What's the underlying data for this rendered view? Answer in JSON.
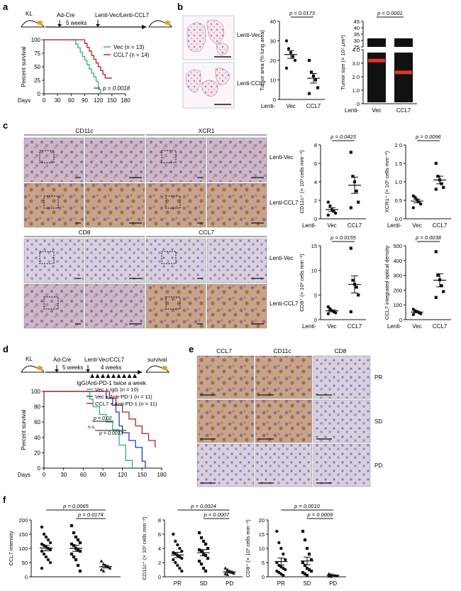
{
  "panels": {
    "a": {
      "letter": "a",
      "schema": {
        "kl": "KL",
        "ad_cre": "Ad-Cre",
        "weeks": "5 weeks",
        "lenti": "Lenti-Vec/Lenti-CCL7"
      },
      "legend": [
        {
          "text": "Vec (n = 13)",
          "color": "#2bb37a"
        },
        {
          "text": "CCL7 (n = 14)",
          "color": "#b22222"
        }
      ],
      "ylabel": "Percent survival",
      "yticks": [
        "0",
        "25",
        "50",
        "75",
        "100"
      ],
      "xlabel": "Days",
      "xticks": [
        "0",
        "30",
        "60",
        "90",
        "120",
        "150",
        "180"
      ],
      "pvalue": "p = 0.0018"
    },
    "b": {
      "letter": "b",
      "rows": [
        "Lenti-Vec",
        "Lenti-CCL7"
      ],
      "chart1": {
        "ylabel": "Tumor area (% lung area)",
        "yticks": [
          "0",
          "10",
          "20",
          "30",
          "40"
        ],
        "pvalue": "p = 0.0173",
        "xprefix": "Lenti-",
        "cats": [
          "Vec",
          "CCL7"
        ]
      },
      "chart2": {
        "ylabel": "Tumor size (× 10⁵ μm²)",
        "yticks_top": [
          "25",
          "30",
          "35",
          "40",
          "45"
        ],
        "yticks_bottom": [
          "0",
          "1.0",
          "2.0",
          "3.0",
          "4.0"
        ],
        "pvalue": "p < 0.0001",
        "xprefix": "Lenti-",
        "cats": [
          "Vec",
          "CCL7"
        ]
      }
    },
    "c": {
      "letter": "c",
      "headers": [
        "CD11c",
        "XCR1",
        "CD8",
        "CCL7"
      ],
      "rows": [
        "Lenti-Vec",
        "Lenti-CCL7"
      ],
      "charts": [
        {
          "ylabel": "CD11c⁺ (× 10³ cells mm⁻²)",
          "yticks": [
            "0",
            "2",
            "4",
            "6",
            "8"
          ],
          "pvalue": "p = 0.0423"
        },
        {
          "ylabel": "XCR1⁺ (× 10² cells mm⁻²)",
          "yticks": [
            "0.0",
            "0.5",
            "1.0",
            "1.5",
            "2.0"
          ],
          "pvalue": "p = 0.0096"
        },
        {
          "ylabel": "CD8⁺ (× 10³ cells mm⁻²)",
          "yticks": [
            "0",
            "5",
            "10",
            "15"
          ],
          "pvalue": "p = 0.0155"
        },
        {
          "ylabel": "CCL7 integrated optical density",
          "yticks": [
            "0",
            "100",
            "200",
            "300",
            "400",
            "500"
          ],
          "pvalue": "p = 0.0038"
        }
      ],
      "xprefix": "Lenti-",
      "cats": [
        "Vec",
        "CCL7"
      ]
    },
    "d": {
      "letter": "d",
      "schema": {
        "kl": "KL",
        "ad_cre": "Ad-Cre",
        "weeks5": "5 weeks",
        "lenti": "Lenti-Vec/CCL7",
        "weeks4": "4 weeks",
        "survival": "survival",
        "treat": "IgG/Anti-PD-1 twice a week"
      },
      "legend": [
        {
          "text": "Vec + IgG (n = 10)",
          "color": "#2bb37a"
        },
        {
          "text": "Vec + Anti-PD-1 (n = 11)",
          "color": "#1f3fbf"
        },
        {
          "text": "CCL7 + Anti-PD-1 (n = 11)",
          "color": "#b22222"
        }
      ],
      "ylabel": "Percent survival",
      "yticks": [
        "0",
        "20",
        "40",
        "60",
        "80",
        "100"
      ],
      "xlabel": "Days",
      "xticks": [
        "0",
        "30",
        "60",
        "90",
        "120",
        "150",
        "180"
      ],
      "p1": "p = 0.02",
      "ns": "n.s.",
      "p2": "p = 0.0033"
    },
    "e": {
      "letter": "e",
      "headers": [
        "CCL7",
        "CD11c",
        "CD8"
      ],
      "rows": [
        "PR",
        "SD",
        "PD"
      ]
    },
    "f": {
      "letter": "f",
      "charts": [
        {
          "ylabel": "CCL7 intensity",
          "yticks": [
            "0",
            "50",
            "100",
            "150",
            "200"
          ],
          "p1": "p = 0.0065",
          "p2": "p = 0.0174"
        },
        {
          "ylabel": "CD11c⁺ (× 10³ cells mm⁻²)",
          "yticks": [
            "0",
            "2",
            "4",
            "6",
            "8"
          ],
          "p1": "p = 0.0024",
          "p2": "p = 0.0007"
        },
        {
          "ylabel": "CD8⁺ (× 10³ cells mm⁻²)",
          "yticks": [
            "0",
            "5",
            "10",
            "15",
            "20"
          ],
          "p1": "p = 0.0010",
          "p2": "p = 0.0009"
        }
      ],
      "cats": [
        "PR",
        "SD",
        "PD"
      ]
    }
  },
  "chart_data": [
    {
      "type": "line",
      "panel": "a",
      "xlabel": "Days",
      "ylabel": "Percent survival",
      "xlim": [
        0,
        180
      ],
      "ylim": [
        0,
        100
      ],
      "series": [
        {
          "name": "Vec (n = 13)",
          "x": [
            0,
            60,
            70,
            75,
            80,
            85,
            90,
            95,
            100,
            105,
            110,
            115,
            120,
            125
          ],
          "y": [
            100,
            100,
            92,
            85,
            77,
            69,
            62,
            54,
            46,
            38,
            31,
            23,
            8,
            0
          ]
        },
        {
          "name": "CCL7 (n = 14)",
          "x": [
            0,
            80,
            90,
            95,
            100,
            105,
            110,
            115,
            120,
            125,
            130,
            135,
            140,
            150
          ],
          "y": [
            100,
            100,
            93,
            86,
            79,
            71,
            64,
            57,
            50,
            43,
            36,
            29,
            29,
            29
          ]
        }
      ]
    },
    {
      "type": "scatter",
      "panel": "b-1",
      "ylabel": "Tumor area (% lung area)",
      "ylim": [
        0,
        40
      ],
      "categories": [
        "Vec",
        "CCL7"
      ],
      "series": [
        {
          "name": "Vec",
          "values": [
            30,
            26,
            24,
            22,
            20,
            16
          ]
        },
        {
          "name": "CCL7",
          "values": [
            20,
            14,
            12,
            10,
            6,
            3
          ]
        }
      ]
    },
    {
      "type": "scatter",
      "panel": "c-CD11c",
      "ylim": [
        0,
        8
      ],
      "categories": [
        "Vec",
        "CCL7"
      ],
      "series": [
        {
          "name": "Vec",
          "values": [
            1.8,
            1.4,
            1.0,
            0.8,
            0.6,
            0.4
          ]
        },
        {
          "name": "CCL7",
          "values": [
            7.2,
            4.6,
            4.0,
            3.0,
            1.8,
            1.2
          ]
        }
      ]
    },
    {
      "type": "scatter",
      "panel": "c-XCR1",
      "ylim": [
        0,
        2
      ],
      "categories": [
        "Vec",
        "CCL7"
      ],
      "series": [
        {
          "name": "Vec",
          "values": [
            0.62,
            0.58,
            0.52,
            0.46,
            0.4,
            0.3
          ]
        },
        {
          "name": "CCL7",
          "values": [
            1.5,
            1.15,
            1.05,
            0.95,
            0.85,
            0.8
          ]
        }
      ]
    },
    {
      "type": "scatter",
      "panel": "c-CD8",
      "ylim": [
        0,
        15
      ],
      "categories": [
        "Vec",
        "CCL7"
      ],
      "series": [
        {
          "name": "Vec",
          "values": [
            2.6,
            2.2,
            1.8,
            1.6,
            1.4,
            1.2
          ]
        },
        {
          "name": "CCL7",
          "values": [
            14.5,
            8.0,
            7.2,
            6.6,
            5.0,
            1.6
          ]
        }
      ]
    },
    {
      "type": "scatter",
      "panel": "c-CCL7",
      "ylim": [
        0,
        500
      ],
      "categories": [
        "Vec",
        "CCL7"
      ],
      "series": [
        {
          "name": "Vec",
          "values": [
            70,
            60,
            55,
            48,
            40,
            35
          ]
        },
        {
          "name": "CCL7",
          "values": [
            460,
            300,
            270,
            230,
            190,
            150
          ]
        }
      ]
    },
    {
      "type": "line",
      "panel": "d",
      "xlabel": "Days",
      "ylabel": "Percent survival",
      "xlim": [
        0,
        180
      ],
      "ylim": [
        0,
        100
      ],
      "series": [
        {
          "name": "Vec + IgG (n = 10)",
          "x": [
            0,
            65,
            70,
            75,
            85,
            95,
            105,
            115,
            125,
            135
          ],
          "y": [
            100,
            100,
            90,
            80,
            70,
            60,
            50,
            30,
            10,
            0
          ]
        },
        {
          "name": "Vec + Anti-PD-1 (n = 11)",
          "x": [
            0,
            80,
            95,
            105,
            110,
            115,
            120,
            130,
            140,
            150,
            155
          ],
          "y": [
            100,
            100,
            91,
            82,
            73,
            55,
            46,
            36,
            27,
            9,
            0
          ]
        },
        {
          "name": "CCL7 + Anti-PD-1 (n = 11)",
          "x": [
            0,
            90,
            100,
            110,
            120,
            130,
            140,
            150,
            160,
            170
          ],
          "y": [
            100,
            100,
            91,
            82,
            73,
            64,
            55,
            45,
            36,
            27
          ]
        }
      ]
    },
    {
      "type": "scatter",
      "panel": "f-CCL7",
      "ylim": [
        0,
        200
      ],
      "categories": [
        "PR",
        "SD",
        "PD"
      ],
      "series": [
        {
          "name": "PR",
          "values": [
            175,
            150,
            140,
            130,
            120,
            115,
            110,
            105,
            100,
            95,
            90,
            80,
            70,
            60,
            50,
            30
          ]
        },
        {
          "name": "SD",
          "values": [
            180,
            155,
            140,
            130,
            120,
            115,
            110,
            100,
            95,
            90,
            80,
            70,
            60,
            40,
            20
          ]
        },
        {
          "name": "PD",
          "values": [
            55,
            45,
            40,
            35,
            30,
            25,
            20
          ]
        }
      ]
    },
    {
      "type": "scatter",
      "panel": "f-CD11c",
      "ylim": [
        0,
        8
      ],
      "categories": [
        "PR",
        "SD",
        "PD"
      ],
      "series": [
        {
          "name": "PR",
          "values": [
            6.0,
            5.0,
            4.5,
            4.0,
            3.6,
            3.4,
            3.2,
            3.0,
            2.8,
            2.6,
            2.4,
            2.0,
            1.6,
            1.2,
            0.8
          ]
        },
        {
          "name": "SD",
          "values": [
            6.2,
            5.5,
            5.0,
            4.6,
            4.0,
            3.8,
            3.6,
            3.2,
            3.0,
            2.6,
            2.2,
            1.8,
            1.2,
            0.8
          ]
        },
        {
          "name": "PD",
          "values": [
            1.2,
            1.0,
            0.8,
            0.6,
            0.5,
            0.4,
            0.3
          ]
        }
      ]
    },
    {
      "type": "scatter",
      "panel": "f-CD8",
      "ylim": [
        0,
        20
      ],
      "categories": [
        "PR",
        "SD",
        "PD"
      ],
      "series": [
        {
          "name": "PR",
          "values": [
            16,
            12,
            10,
            8,
            6,
            5,
            4,
            3.5,
            3,
            2.5,
            2,
            1.5,
            1,
            0.5
          ]
        },
        {
          "name": "SD",
          "values": [
            16,
            13,
            10,
            8,
            6,
            5,
            4,
            3,
            2.5,
            2,
            1.5,
            1,
            0.5
          ]
        },
        {
          "name": "PD",
          "values": [
            1.0,
            0.8,
            0.6,
            0.4,
            0.3,
            0.2,
            0.1
          ]
        }
      ]
    }
  ]
}
